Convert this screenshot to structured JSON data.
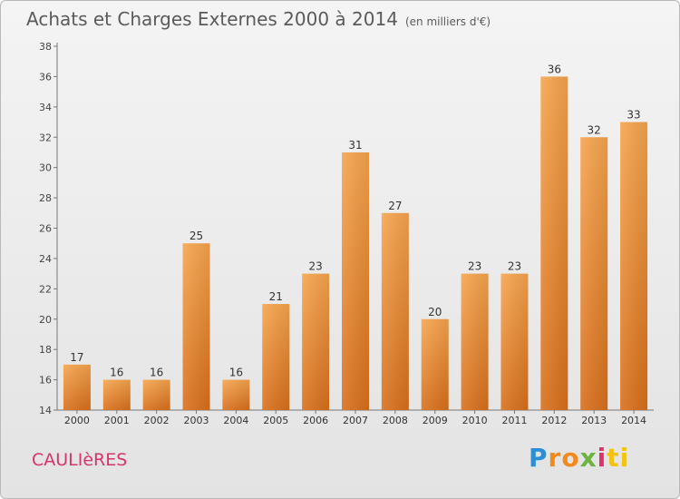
{
  "header": {
    "title": "Achats et Charges Externes 2000 à 2014",
    "unit": "(en milliers d'€)"
  },
  "footer": {
    "commune": "CAULIèRES",
    "logo": {
      "p1": "P",
      "p2": "ro",
      "p3": "x",
      "p4": "i",
      "p5": "ti"
    }
  },
  "colors": {
    "bar_top": "#f7a54e",
    "bar_bottom": "#d9701c",
    "title": "#5a5a5a",
    "commune": "#d6346a"
  },
  "chart_data": {
    "type": "bar",
    "title": "Achats et Charges Externes 2000 à 2014",
    "subtitle": "(en milliers d'€)",
    "categories": [
      "2000",
      "2001",
      "2002",
      "2003",
      "2004",
      "2005",
      "2006",
      "2007",
      "2008",
      "2009",
      "2010",
      "2011",
      "2012",
      "2013",
      "2014"
    ],
    "values": [
      17,
      16,
      16,
      25,
      16,
      21,
      23,
      31,
      27,
      20,
      23,
      23,
      36,
      32,
      33
    ],
    "ylim": [
      14,
      38
    ],
    "yticks": [
      14,
      16,
      18,
      20,
      22,
      24,
      26,
      28,
      30,
      32,
      34,
      36,
      38
    ],
    "grid": false,
    "legend": "none"
  }
}
